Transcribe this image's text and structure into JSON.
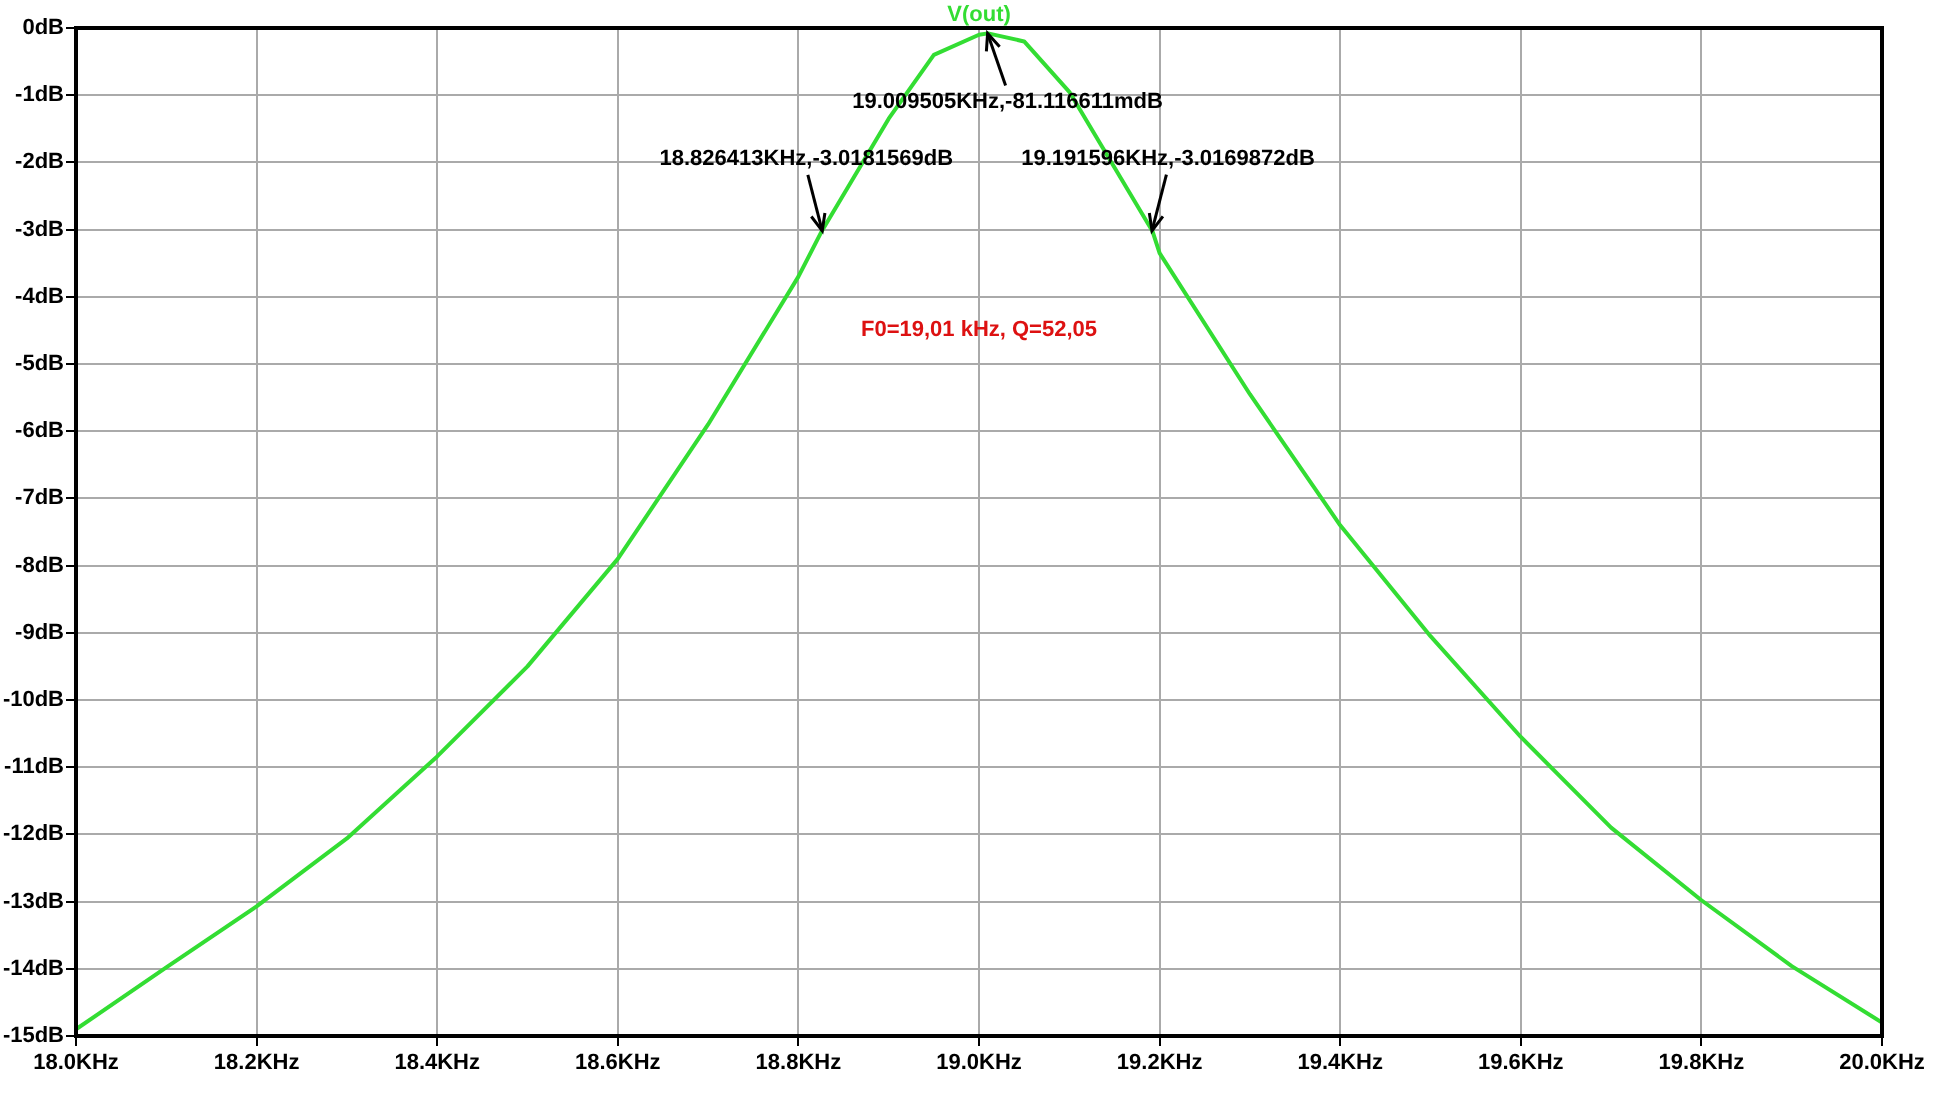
{
  "chart_data": {
    "type": "line",
    "xlim": [
      18.0,
      20.0
    ],
    "ylim": [
      -15,
      0
    ],
    "xticks": [
      {
        "value": 18.0,
        "label": "18.0KHz"
      },
      {
        "value": 18.2,
        "label": "18.2KHz"
      },
      {
        "value": 18.4,
        "label": "18.4KHz"
      },
      {
        "value": 18.6,
        "label": "18.6KHz"
      },
      {
        "value": 18.8,
        "label": "18.8KHz"
      },
      {
        "value": 19.0,
        "label": "19.0KHz"
      },
      {
        "value": 19.2,
        "label": "19.2KHz"
      },
      {
        "value": 19.4,
        "label": "19.4KHz"
      },
      {
        "value": 19.6,
        "label": "19.6KHz"
      },
      {
        "value": 19.8,
        "label": "19.8KHz"
      },
      {
        "value": 20.0,
        "label": "20.0KHz"
      }
    ],
    "yticks": [
      {
        "value": 0,
        "label": "0dB"
      },
      {
        "value": -1,
        "label": "-1dB"
      },
      {
        "value": -2,
        "label": "-2dB"
      },
      {
        "value": -3,
        "label": "-3dB"
      },
      {
        "value": -4,
        "label": "-4dB"
      },
      {
        "value": -5,
        "label": "-5dB"
      },
      {
        "value": -6,
        "label": "-6dB"
      },
      {
        "value": -7,
        "label": "-7dB"
      },
      {
        "value": -8,
        "label": "-8dB"
      },
      {
        "value": -9,
        "label": "-9dB"
      },
      {
        "value": -10,
        "label": "-10dB"
      },
      {
        "value": -11,
        "label": "-11dB"
      },
      {
        "value": -12,
        "label": "-12dB"
      },
      {
        "value": -13,
        "label": "-13dB"
      },
      {
        "value": -14,
        "label": "-14dB"
      },
      {
        "value": -15,
        "label": "-15dB"
      }
    ],
    "grid": true,
    "legend": false,
    "marker": "none",
    "line_style": "solid",
    "series": [
      {
        "name": "V(out)",
        "color": "#33dd33",
        "x": [
          18.0,
          18.1,
          18.2,
          18.3,
          18.4,
          18.5,
          18.6,
          18.7,
          18.8,
          18.826,
          18.9,
          18.95,
          19.0,
          19.01,
          19.05,
          19.1,
          19.192,
          19.2,
          19.3,
          19.4,
          19.5,
          19.6,
          19.7,
          19.8,
          19.9,
          20.0
        ],
        "values": [
          -14.9,
          -13.98,
          -13.07,
          -12.06,
          -10.84,
          -9.5,
          -7.9,
          -5.9,
          -3.7,
          -3.02,
          -1.35,
          -0.4,
          -0.1,
          -0.08,
          -0.2,
          -0.95,
          -3.02,
          -3.35,
          -5.45,
          -7.4,
          -9.05,
          -10.55,
          -11.9,
          -12.98,
          -13.96,
          -14.8
        ]
      }
    ],
    "annotations": [
      {
        "text": "19.009505KHz,-81.116611mdB",
        "x": 19.009505,
        "y": -0.081116611
      },
      {
        "text": "18.826413KHz,-3.0181569dB",
        "x": 18.826413,
        "y": -3.0181569
      },
      {
        "text": "19.191596KHz,-3.0169872dB",
        "x": 19.191596,
        "y": -3.0169872
      },
      "F0=19,01 kHz, Q=52,05"
    ]
  }
}
